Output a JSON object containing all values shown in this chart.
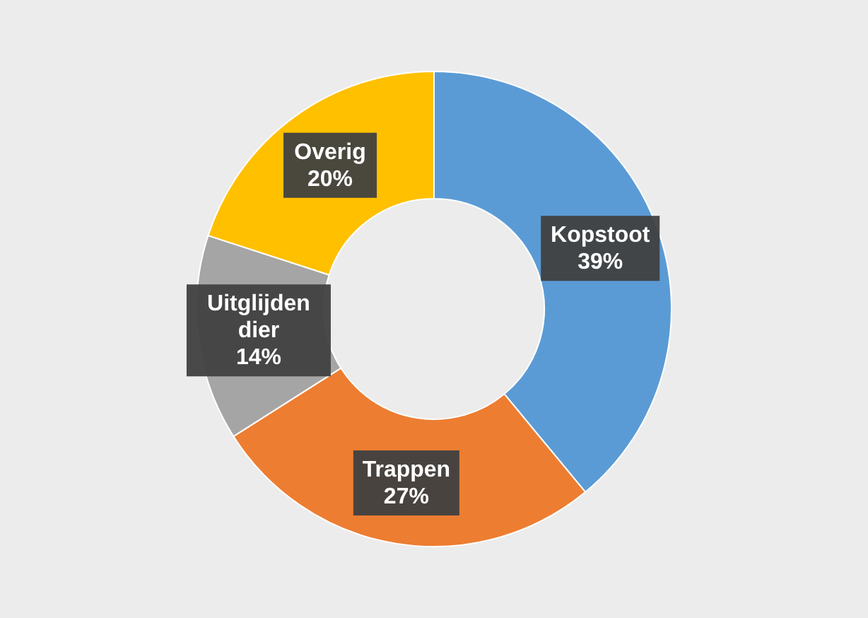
{
  "chart_data": {
    "type": "donut",
    "categories": [
      "Kopstoot",
      "Trappen",
      "Uitglijden dier",
      "Overig"
    ],
    "values": [
      39,
      27,
      14,
      20
    ],
    "colors": [
      "#5b9bd5",
      "#ed7d31",
      "#a5a5a5",
      "#ffc000"
    ],
    "value_labels": [
      "39%",
      "27%",
      "14%",
      "20%"
    ]
  }
}
